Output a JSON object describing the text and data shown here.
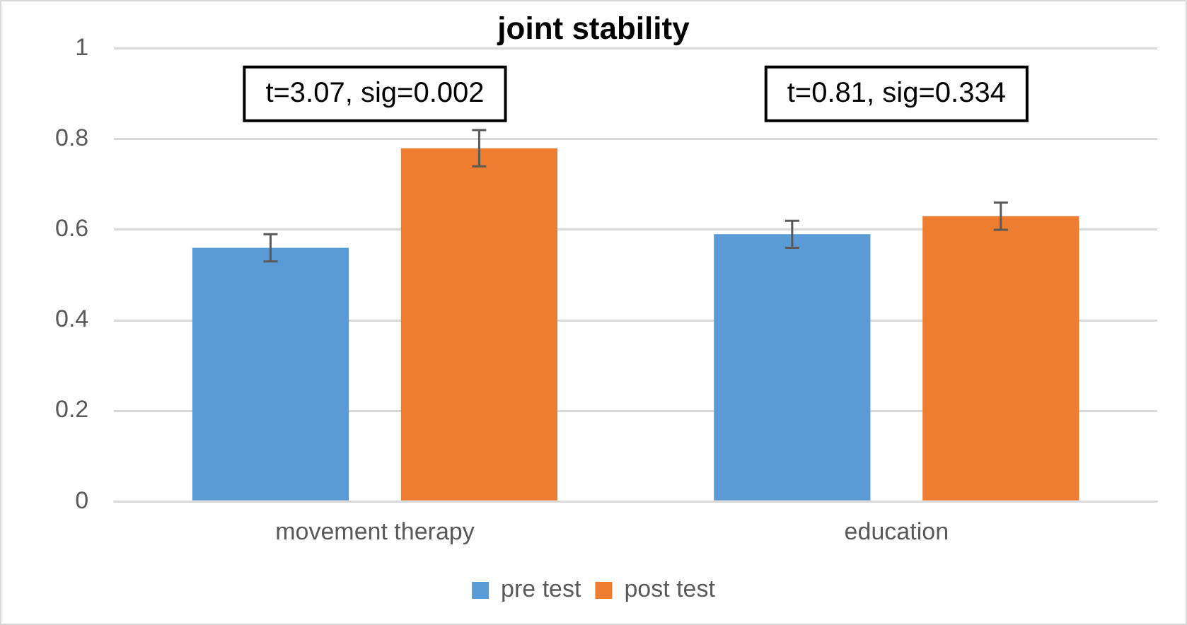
{
  "chart_data": {
    "type": "bar",
    "title": "joint stability",
    "categories": [
      "movement therapy",
      "education"
    ],
    "series": [
      {
        "name": "pre test",
        "color": "#5b9bd5",
        "values": [
          0.56,
          0.59
        ],
        "errors": [
          0.03,
          0.03
        ]
      },
      {
        "name": "post test",
        "color": "#ed7d31",
        "values": [
          0.78,
          0.63
        ],
        "errors": [
          0.04,
          0.03
        ]
      }
    ],
    "ylim": [
      0,
      1
    ],
    "yticks": [
      0,
      0.2,
      0.4,
      0.6,
      0.8,
      1
    ],
    "grid": "y",
    "legend": "bottom",
    "annotations": [
      "t=3.07, sig=0.002",
      "t=0.81, sig=0.334"
    ]
  }
}
